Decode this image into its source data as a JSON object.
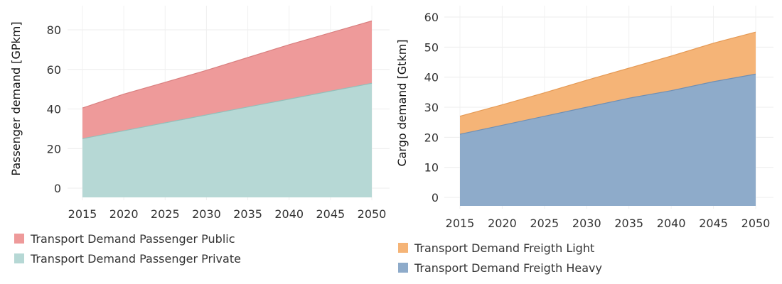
{
  "chart_data": [
    {
      "type": "area",
      "stacked": true,
      "ylabel": "Passenger demand [GPkm]",
      "xlim": [
        2015,
        2050
      ],
      "ylim": [
        0,
        90
      ],
      "x_ticks": [
        2015,
        2020,
        2025,
        2030,
        2035,
        2040,
        2045,
        2050
      ],
      "y_ticks": [
        0,
        20,
        40,
        60,
        80
      ],
      "grid": true,
      "legend_position": "bottom-left",
      "x": [
        2015,
        2020,
        2025,
        2030,
        2035,
        2040,
        2045,
        2050
      ],
      "series": [
        {
          "name": "Transport Demand Passenger Public",
          "color": "#EE9A9A",
          "stroke": "#D97F7F",
          "values": [
            15.5,
            18.5,
            20.5,
            22.5,
            25.0,
            27.5,
            29.5,
            31.5
          ]
        },
        {
          "name": "Transport Demand Passenger Private",
          "color": "#B6D8D5",
          "stroke": "#94BFBA",
          "values": [
            25,
            29,
            33,
            37,
            41,
            45,
            49,
            53
          ]
        }
      ]
    },
    {
      "type": "area",
      "stacked": true,
      "ylabel": "Cargo demand [Gtkm]",
      "xlim": [
        2015,
        2050
      ],
      "ylim": [
        0,
        62
      ],
      "x_ticks": [
        2015,
        2020,
        2025,
        2030,
        2035,
        2040,
        2045,
        2050
      ],
      "y_ticks": [
        0,
        10,
        20,
        30,
        40,
        50,
        60
      ],
      "grid": true,
      "legend_position": "bottom-left",
      "x": [
        2015,
        2020,
        2025,
        2030,
        2035,
        2040,
        2045,
        2050
      ],
      "series": [
        {
          "name": "Transport Demand Freigth Light",
          "color": "#F5B477",
          "stroke": "#E59A55",
          "values": [
            6.0,
            6.8,
            7.8,
            9.0,
            10.0,
            11.5,
            12.8,
            14.0
          ]
        },
        {
          "name": "Transport Demand Freigth Heavy",
          "color": "#8EABCA",
          "stroke": "#6E8FB5",
          "values": [
            21,
            24,
            27,
            30,
            33,
            35.5,
            38.5,
            41
          ]
        }
      ]
    }
  ]
}
